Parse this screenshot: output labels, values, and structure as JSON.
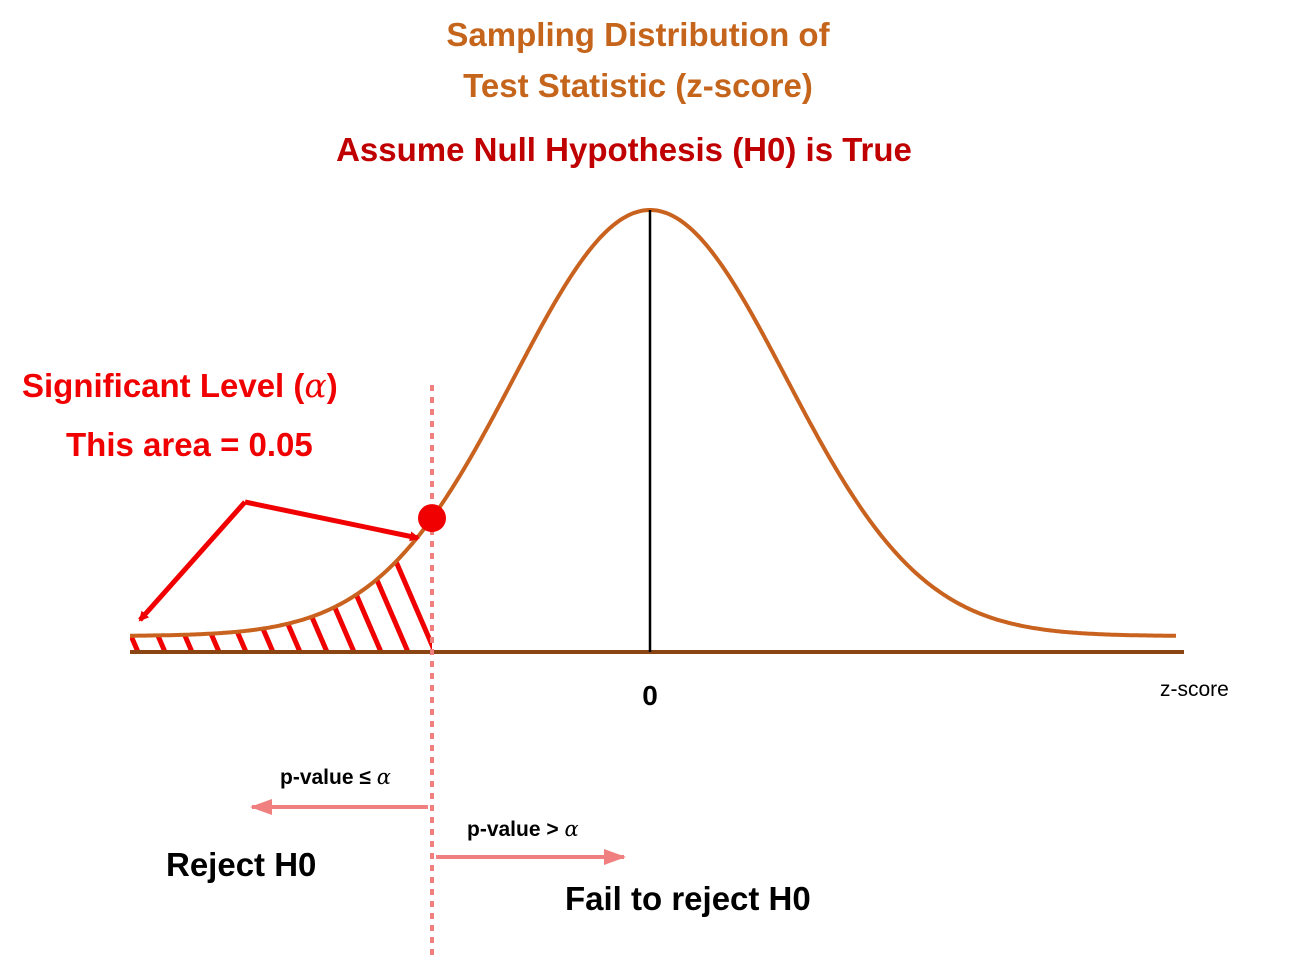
{
  "title": {
    "line1": "Sampling Distribution of",
    "line2": "Test Statistic (z-score)",
    "assumption": "Assume Null Hypothesis (H0) is True"
  },
  "alpha_annotation": {
    "line1_text": "Significant Level (",
    "line1_symbol": "α",
    "line1_close": ")",
    "line2": "This area = 0.05"
  },
  "axis": {
    "center_tick": "0",
    "label": "z-score"
  },
  "regions": {
    "left_condition_text": "p-value ≤ ",
    "left_condition_symbol": "α",
    "left_decision": "Reject H0",
    "right_condition_text": "p-value > ",
    "right_condition_symbol": "α",
    "right_decision": "Fail to reject H0"
  },
  "colors": {
    "title": "#c5651c",
    "assumption": "#c00000",
    "alpha_annotation": "#f00000",
    "curve": "#c8621e",
    "axis_line": "#8b4513",
    "hatch": "#f00000",
    "critical_line": "#f08080",
    "region_arrows": "#f08080",
    "decision_text": "#000000"
  },
  "icons": {
    "critical_point": "red-dot-marker",
    "pointer_arrows": "red-arrow-icon"
  }
}
